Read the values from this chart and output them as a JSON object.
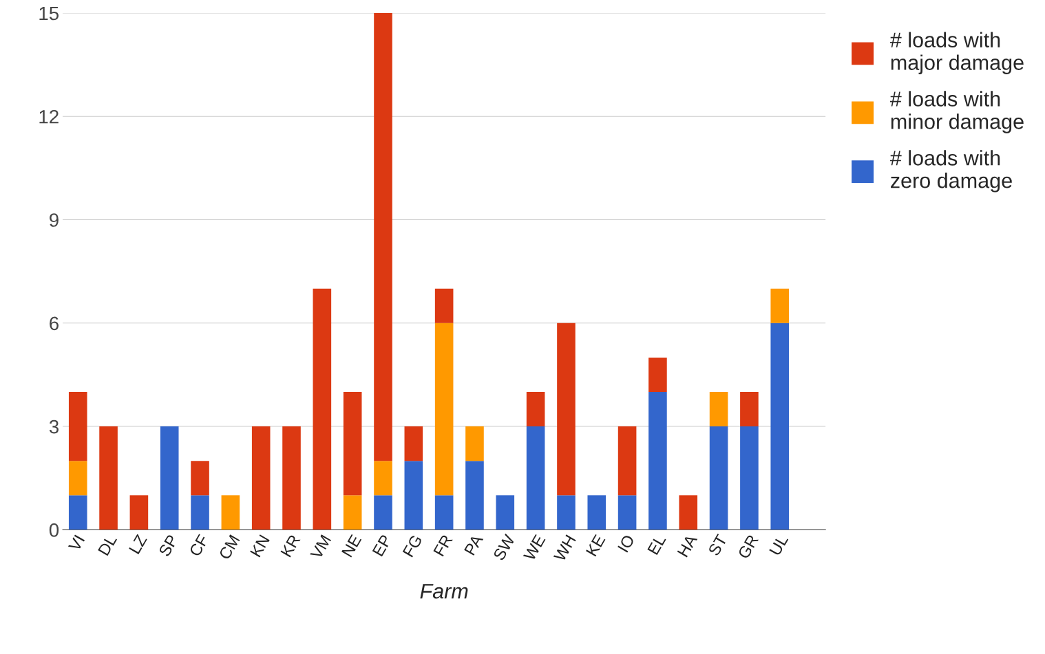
{
  "chart_data": {
    "type": "bar",
    "stacked": true,
    "xlabel": "Farm",
    "categories": [
      "VI",
      "DL",
      "LZ",
      "SP",
      "CF",
      "CM",
      "KN",
      "KR",
      "VM",
      "NE",
      "EP",
      "FG",
      "FR",
      "PA",
      "SW",
      "WE",
      "WH",
      "KE",
      "IO",
      "EL",
      "HA",
      "ST",
      "GR",
      "UL"
    ],
    "series": [
      {
        "name": "# loads with zero damage",
        "color": "#3366cc",
        "values": [
          1,
          0,
          0,
          3,
          1,
          0,
          0,
          0,
          0,
          0,
          1,
          2,
          1,
          2,
          1,
          3,
          1,
          1,
          1,
          4,
          0,
          3,
          3,
          6
        ]
      },
      {
        "name": "# loads with minor damage",
        "color": "#ff9900",
        "values": [
          1,
          0,
          0,
          0,
          0,
          1,
          0,
          0,
          0,
          1,
          1,
          0,
          5,
          1,
          0,
          0,
          0,
          0,
          0,
          0,
          0,
          1,
          0,
          1
        ]
      },
      {
        "name": "# loads with major damage",
        "color": "#dc3912",
        "values": [
          2,
          3,
          1,
          0,
          1,
          0,
          3,
          3,
          7,
          3,
          13,
          1,
          1,
          0,
          0,
          1,
          5,
          0,
          2,
          1,
          1,
          0,
          1,
          0
        ]
      }
    ],
    "ylim": [
      0,
      15
    ],
    "yticks": [
      0,
      3,
      6,
      9,
      12,
      15
    ],
    "grid": "y",
    "legend": "top right"
  }
}
